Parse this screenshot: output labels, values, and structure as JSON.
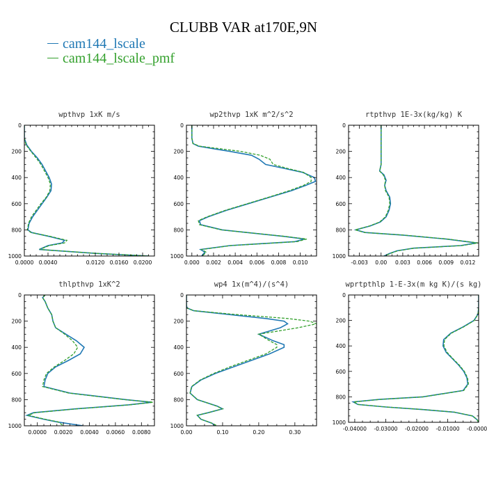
{
  "figure": {
    "title": "CLUBB VAR at170E,9N",
    "legend": [
      {
        "label": "cam144_lscale",
        "color": "#1f78b4"
      },
      {
        "label": "cam144_lscale_pmf",
        "color": "#33a02c"
      }
    ]
  },
  "chart_data": [
    {
      "type": "line",
      "title": "wpthvp  1xK m/s",
      "xlim": [
        0.0,
        0.022
      ],
      "ylim": [
        1000,
        0
      ],
      "xticks": [
        0.0,
        0.004,
        0.012,
        0.016,
        0.02
      ],
      "xticklabels": [
        "0.0000",
        "0.0040",
        "0.0120",
        "0.0160",
        "0.0200"
      ],
      "yticks": [
        0,
        200,
        400,
        600,
        800,
        1000
      ],
      "yticklabels": [
        "0",
        "200",
        "400",
        "600",
        "800",
        "1000"
      ],
      "series": [
        {
          "name": "cam144_lscale",
          "y": [
            0,
            100,
            150,
            200,
            250,
            300,
            350,
            400,
            450,
            500,
            550,
            600,
            650,
            700,
            750,
            800,
            820,
            850,
            880,
            900,
            920,
            950,
            980,
            1000
          ],
          "x": [
            0.0,
            0.0,
            0.0004,
            0.0012,
            0.0022,
            0.003,
            0.0036,
            0.0042,
            0.0046,
            0.0045,
            0.0038,
            0.003,
            0.0022,
            0.0014,
            0.0008,
            0.0006,
            0.0012,
            0.0042,
            0.0068,
            0.0064,
            0.004,
            0.0025,
            0.012,
            0.021
          ]
        },
        {
          "name": "cam144_lscale_pmf",
          "dashed": true,
          "y": [
            0,
            100,
            150,
            200,
            250,
            300,
            350,
            400,
            450,
            500,
            550,
            600,
            650,
            700,
            750,
            800,
            820,
            850,
            880,
            900,
            920,
            950,
            980,
            1000
          ],
          "x": [
            0.0,
            0.0,
            0.0003,
            0.0011,
            0.002,
            0.0028,
            0.0034,
            0.004,
            0.0044,
            0.0043,
            0.0037,
            0.0028,
            0.002,
            0.0012,
            0.0007,
            0.0005,
            0.0011,
            0.0044,
            0.0072,
            0.0068,
            0.0042,
            0.0026,
            0.0122,
            0.0212
          ]
        }
      ]
    },
    {
      "type": "line",
      "title": "wp2thvp  1xK m^2/s^2",
      "xlim": [
        -0.0005,
        0.0115
      ],
      "ylim": [
        1000,
        0
      ],
      "xticks": [
        0.0,
        0.002,
        0.004,
        0.006,
        0.008,
        0.01
      ],
      "xticklabels": [
        "0.000",
        "0.002",
        "0.004",
        "0.006",
        "0.008",
        "0.010"
      ],
      "yticks": [
        0,
        200,
        400,
        600,
        800,
        1000
      ],
      "yticklabels": [
        "0",
        "200",
        "400",
        "600",
        "800",
        "1000"
      ],
      "series": [
        {
          "name": "cam144_lscale",
          "y": [
            0,
            100,
            140,
            160,
            180,
            200,
            230,
            260,
            300,
            330,
            360,
            400,
            430,
            460,
            500,
            550,
            600,
            650,
            700,
            730,
            760,
            800,
            850,
            870,
            890,
            920,
            950,
            970,
            1000
          ],
          "x": [
            0.0,
            0.0,
            0.0001,
            0.0006,
            0.002,
            0.0035,
            0.0055,
            0.0062,
            0.0068,
            0.0085,
            0.0102,
            0.0113,
            0.0114,
            0.0105,
            0.0092,
            0.0072,
            0.0052,
            0.0032,
            0.0015,
            0.0007,
            0.0008,
            0.0028,
            0.0085,
            0.0104,
            0.0095,
            0.0035,
            0.0008,
            0.0012,
            0.0009
          ]
        },
        {
          "name": "cam144_lscale_pmf",
          "dashed": true,
          "y": [
            0,
            100,
            140,
            160,
            180,
            200,
            230,
            260,
            300,
            330,
            360,
            400,
            430,
            460,
            500,
            550,
            600,
            650,
            700,
            730,
            760,
            800,
            850,
            870,
            890,
            920,
            950,
            970,
            1000
          ],
          "x": [
            0.0,
            0.0,
            0.0001,
            0.0007,
            0.0026,
            0.0045,
            0.0063,
            0.0072,
            0.0075,
            0.0088,
            0.0103,
            0.011,
            0.011,
            0.0103,
            0.009,
            0.0071,
            0.0051,
            0.0031,
            0.0014,
            0.0006,
            0.0007,
            0.0027,
            0.0086,
            0.0106,
            0.0097,
            0.0036,
            0.0009,
            0.0013,
            0.001
          ]
        }
      ]
    },
    {
      "type": "line",
      "title": "rtpthvp  1E-3x(kg/kg) K",
      "xlim": [
        -0.0045,
        0.0135
      ],
      "ylim": [
        1000,
        0
      ],
      "xticks": [
        -0.003,
        0.0,
        0.003,
        0.006,
        0.009,
        0.012
      ],
      "xticklabels": [
        "-0.003",
        "0.00",
        "0.003",
        "0.006",
        "0.009",
        "0.012"
      ],
      "yticks": [
        0,
        200,
        400,
        600,
        800,
        1000
      ],
      "yticklabels": [
        "0",
        "200",
        "400",
        "600",
        "800",
        "1000"
      ],
      "series": [
        {
          "name": "cam144_lscale",
          "y": [
            0,
            100,
            200,
            300,
            350,
            380,
            420,
            460,
            500,
            550,
            600,
            650,
            700,
            740,
            770,
            800,
            820,
            840,
            870,
            900,
            920,
            940,
            960,
            980,
            1000
          ],
          "x": [
            0.0,
            0.0,
            0.0,
            0.0,
            -0.0002,
            0.0004,
            0.0007,
            0.0005,
            0.0007,
            0.0012,
            0.0013,
            0.0011,
            0.0007,
            -0.0001,
            -0.0015,
            -0.0035,
            -0.0022,
            0.003,
            0.009,
            0.0132,
            0.011,
            0.0045,
            0.0022,
            0.0012,
            0.0004
          ]
        },
        {
          "name": "cam144_lscale_pmf",
          "dashed": true,
          "y": [
            0,
            100,
            200,
            300,
            350,
            380,
            420,
            460,
            500,
            550,
            600,
            650,
            700,
            740,
            770,
            800,
            820,
            840,
            870,
            900,
            920,
            940,
            960,
            980,
            1000
          ],
          "x": [
            0.0,
            0.0,
            0.0,
            0.0,
            -0.0002,
            0.0003,
            0.0006,
            0.0005,
            0.0006,
            0.0011,
            0.0012,
            0.001,
            0.0006,
            -0.0002,
            -0.0016,
            -0.0036,
            -0.0023,
            0.0031,
            0.0092,
            0.0134,
            0.0112,
            0.0046,
            0.0023,
            0.0013,
            0.0005
          ]
        }
      ]
    },
    {
      "type": "line",
      "title": "thlpthvp  1xK^2",
      "xlim": [
        -0.001,
        0.009
      ],
      "ylim": [
        1000,
        0
      ],
      "xticks": [
        0.0,
        0.002,
        0.004,
        0.006,
        0.008
      ],
      "xticklabels": [
        "0.0000",
        "0.0020",
        "0.0040",
        "0.0060",
        "0.0080"
      ],
      "yticks": [
        0,
        200,
        400,
        600,
        800,
        1000
      ],
      "yticklabels": [
        "0",
        "200",
        "400",
        "600",
        "800",
        "1000"
      ],
      "series": [
        {
          "name": "cam144_lscale",
          "y": [
            0,
            20,
            50,
            100,
            150,
            200,
            250,
            300,
            350,
            400,
            450,
            500,
            550,
            600,
            650,
            700,
            750,
            800,
            820,
            840,
            870,
            900,
            920,
            950,
            970,
            1000
          ],
          "x": [
            0.0006,
            0.0004,
            0.0006,
            0.0008,
            0.0011,
            0.0012,
            0.0014,
            0.0022,
            0.003,
            0.0036,
            0.0033,
            0.0024,
            0.0014,
            0.0008,
            0.0006,
            0.0005,
            0.0025,
            0.0068,
            0.0088,
            0.007,
            0.003,
            -0.0003,
            -0.0008,
            0.0005,
            0.0015,
            0.0035
          ]
        },
        {
          "name": "cam144_lscale_pmf",
          "dashed": true,
          "y": [
            0,
            20,
            50,
            100,
            150,
            200,
            250,
            300,
            350,
            400,
            450,
            500,
            550,
            600,
            650,
            700,
            750,
            800,
            820,
            840,
            870,
            900,
            920,
            950,
            970,
            1000
          ],
          "x": [
            0.0006,
            0.0004,
            0.0006,
            0.0008,
            0.0011,
            0.0012,
            0.0014,
            0.0021,
            0.0027,
            0.0031,
            0.0028,
            0.0021,
            0.0013,
            0.0007,
            0.0005,
            0.0004,
            0.0024,
            0.0067,
            0.0089,
            0.0071,
            0.0031,
            -0.0002,
            -0.0007,
            0.0006,
            0.0016,
            0.002
          ]
        }
      ]
    },
    {
      "type": "line",
      "title": "wp4  1x(m^4)/(s^4)",
      "xlim": [
        0.0,
        0.36
      ],
      "ylim": [
        1000,
        0
      ],
      "xticks": [
        0.0,
        0.1,
        0.2,
        0.3
      ],
      "xticklabels": [
        "0.00",
        "0.10",
        "0.20",
        "0.30"
      ],
      "yticks": [
        0,
        200,
        400,
        600,
        800,
        1000
      ],
      "yticklabels": [
        "0",
        "200",
        "400",
        "600",
        "800",
        "1000"
      ],
      "series": [
        {
          "name": "cam144_lscale",
          "y": [
            0,
            80,
            100,
            120,
            150,
            180,
            200,
            220,
            250,
            300,
            350,
            380,
            400,
            450,
            500,
            550,
            600,
            650,
            700,
            750,
            800,
            850,
            870,
            900,
            920,
            950,
            980,
            1000
          ],
          "x": [
            0.0,
            0.0,
            0.002,
            0.02,
            0.12,
            0.22,
            0.27,
            0.28,
            0.26,
            0.2,
            0.24,
            0.27,
            0.27,
            0.23,
            0.18,
            0.13,
            0.08,
            0.04,
            0.015,
            0.01,
            0.03,
            0.085,
            0.1,
            0.06,
            0.03,
            0.04,
            0.07,
            0.08
          ]
        },
        {
          "name": "cam144_lscale_pmf",
          "dashed": true,
          "y": [
            0,
            80,
            100,
            120,
            150,
            180,
            200,
            220,
            250,
            300,
            350,
            380,
            400,
            450,
            500,
            550,
            600,
            650,
            700,
            750,
            800,
            850,
            870,
            900,
            920,
            950,
            980,
            1000
          ],
          "x": [
            0.0,
            0.0,
            0.002,
            0.02,
            0.14,
            0.28,
            0.34,
            0.36,
            0.31,
            0.2,
            0.23,
            0.25,
            0.25,
            0.22,
            0.17,
            0.12,
            0.075,
            0.038,
            0.014,
            0.01,
            0.03,
            0.084,
            0.1,
            0.06,
            0.03,
            0.04,
            0.07,
            0.085
          ]
        }
      ]
    },
    {
      "type": "line",
      "title": "wprtpthlp  1-E-3x(m kg K)/(s kg)",
      "xlim": [
        -0.042,
        0.0
      ],
      "ylim": [
        1000,
        0
      ],
      "xticks": [
        -0.04,
        -0.03,
        -0.02,
        -0.01,
        0.0
      ],
      "xticklabels": [
        "-0.04000",
        "-0.03000",
        "-0.02000",
        "-0.01000",
        "-0.00000"
      ],
      "yticks": [
        0,
        200,
        400,
        600,
        800,
        1000
      ],
      "yticklabels": [
        "0",
        "200",
        "400",
        "600",
        "800",
        "1000"
      ],
      "series": [
        {
          "name": "cam144_lscale",
          "y": [
            0,
            100,
            150,
            200,
            250,
            300,
            350,
            400,
            450,
            500,
            550,
            600,
            650,
            700,
            750,
            800,
            820,
            840,
            860,
            880,
            900,
            920,
            950,
            980,
            1000
          ],
          "x": [
            0.0,
            0.0,
            -0.0002,
            -0.0015,
            -0.005,
            -0.009,
            -0.0113,
            -0.0115,
            -0.0105,
            -0.0085,
            -0.0065,
            -0.0048,
            -0.0038,
            -0.0035,
            -0.005,
            -0.018,
            -0.032,
            -0.0405,
            -0.039,
            -0.03,
            -0.018,
            -0.008,
            -0.002,
            -0.0005,
            0.0
          ]
        },
        {
          "name": "cam144_lscale_pmf",
          "dashed": true,
          "y": [
            0,
            100,
            150,
            200,
            250,
            300,
            350,
            400,
            450,
            500,
            550,
            600,
            650,
            700,
            750,
            800,
            820,
            840,
            860,
            880,
            900,
            920,
            950,
            980,
            1000
          ],
          "x": [
            0.0,
            0.0,
            -0.0002,
            -0.0014,
            -0.0048,
            -0.0088,
            -0.011,
            -0.0112,
            -0.0102,
            -0.0083,
            -0.0063,
            -0.0046,
            -0.0036,
            -0.0033,
            -0.0048,
            -0.0178,
            -0.0318,
            -0.0403,
            -0.0388,
            -0.0298,
            -0.0178,
            -0.0078,
            -0.0019,
            -0.0005,
            0.0
          ]
        }
      ]
    }
  ]
}
